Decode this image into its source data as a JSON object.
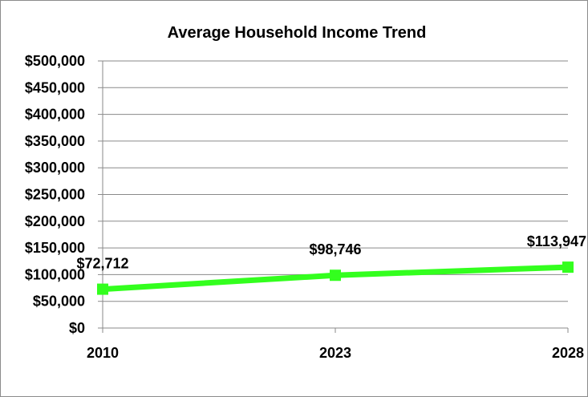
{
  "chart_data": {
    "type": "line",
    "title": "Average Household Income Trend",
    "xlabel": "",
    "ylabel": "",
    "categories": [
      "2010",
      "2023",
      "2028"
    ],
    "series": [
      {
        "values": [
          72712,
          98746,
          113947
        ]
      }
    ],
    "data_labels": [
      "$72,712",
      "$98,746",
      "$113,947"
    ],
    "ylim": [
      0,
      500000
    ],
    "y_ticks": [
      0,
      50000,
      100000,
      150000,
      200000,
      250000,
      300000,
      350000,
      400000,
      450000,
      500000
    ],
    "y_tick_labels": [
      "$0",
      "$50,000",
      "$100,000",
      "$150,000",
      "$200,000",
      "$250,000",
      "$300,000",
      "$350,000",
      "$400,000",
      "$450,000",
      "$500,000"
    ],
    "grid": true,
    "legend": "none",
    "line_color": "#33ff1e",
    "gridline_color": "#8a8a8a"
  }
}
